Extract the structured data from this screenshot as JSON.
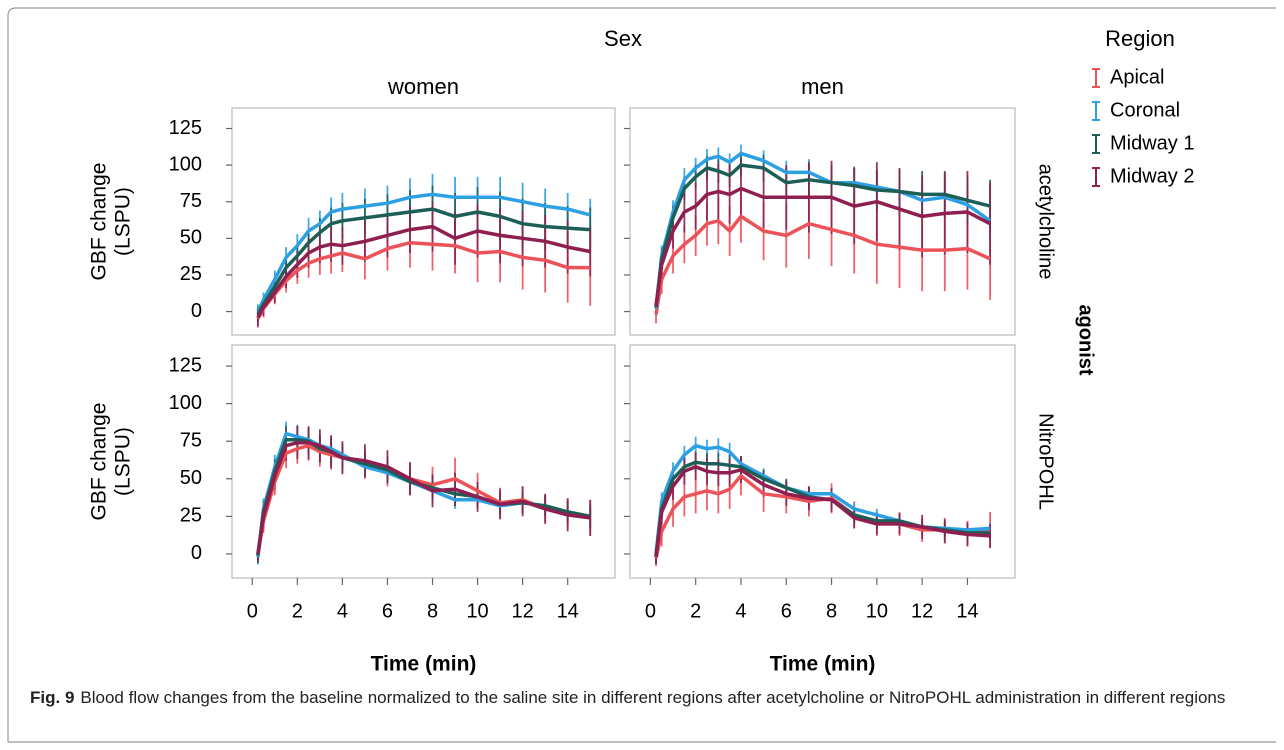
{
  "chart_data": {
    "type": "line",
    "column_facet_title": "Sex",
    "row_facet_title": "agonist",
    "legend_title": "Region",
    "columns": [
      "women",
      "men"
    ],
    "rows": [
      "acetylcholine",
      "NitroPOHL"
    ],
    "x_label": "Time (min)",
    "y_label": [
      "GBF change",
      "(LSPU)"
    ],
    "x": [
      0.25,
      0.5,
      1,
      1.5,
      2,
      2.5,
      3,
      3.5,
      4,
      5,
      6,
      7,
      8,
      9,
      10,
      11,
      12,
      13,
      14,
      15
    ],
    "xlim": [
      -0.9,
      16.1
    ],
    "xticks": [
      0,
      2,
      4,
      6,
      8,
      10,
      12,
      14
    ],
    "ylim": [
      -16,
      139
    ],
    "yticks": [
      0,
      25,
      50,
      75,
      100,
      125
    ],
    "grid": false,
    "series": [
      {
        "name": "Apical",
        "color": "#ec5258"
      },
      {
        "name": "Coronal",
        "color": "#2d9fe3"
      },
      {
        "name": "Midway 1",
        "color": "#1d5f57"
      },
      {
        "name": "Midway 2",
        "color": "#8f1f50"
      }
    ],
    "panels": [
      [
        {
          "values": [
            [
              -5,
              2,
              12,
              21,
              28,
              33,
              36,
              38,
              40,
              36,
              43,
              47,
              46,
              45,
              40,
              41,
              37,
              35,
              30,
              30
            ],
            [
              0,
              8,
              22,
              37,
              45,
              55,
              60,
              68,
              70,
              72,
              74,
              78,
              80,
              78,
              78,
              78,
              75,
              72,
              70,
              66
            ],
            [
              -2,
              5,
              17,
              30,
              38,
              47,
              54,
              60,
              62,
              64,
              66,
              68,
              70,
              65,
              68,
              65,
              60,
              58,
              57,
              56
            ],
            [
              -4,
              3,
              13,
              24,
              32,
              40,
              44,
              46,
              45,
              48,
              52,
              56,
              58,
              50,
              55,
              52,
              50,
              48,
              44,
              41
            ]
          ],
          "errors": [
            [
              6,
              6,
              7,
              8,
              9,
              10,
              11,
              12,
              13,
              14,
              15,
              17,
              18,
              19,
              20,
              21,
              22,
              22,
              24,
              26
            ],
            [
              5,
              5,
              6,
              7,
              8,
              9,
              9,
              10,
              11,
              12,
              12,
              13,
              14,
              14,
              14,
              14,
              13,
              12,
              11,
              11
            ],
            [
              5,
              5,
              6,
              7,
              8,
              9,
              10,
              11,
              12,
              13,
              14,
              15,
              16,
              16,
              17,
              17,
              17,
              16,
              15,
              15
            ],
            [
              6,
              6,
              7,
              8,
              9,
              10,
              11,
              12,
              13,
              14,
              15,
              16,
              17,
              18,
              18,
              19,
              19,
              18,
              18,
              17
            ]
          ]
        },
        {
          "values": [
            [
              -2,
              22,
              38,
              46,
              52,
              60,
              62,
              55,
              65,
              55,
              52,
              60,
              56,
              52,
              46,
              44,
              42,
              42,
              43,
              36
            ],
            [
              2,
              38,
              68,
              90,
              98,
              104,
              106,
              102,
              108,
              103,
              95,
              95,
              88,
              88,
              85,
              82,
              76,
              78,
              73,
              62
            ],
            [
              3,
              36,
              64,
              84,
              92,
              98,
              96,
              93,
              100,
              98,
              88,
              90,
              88,
              86,
              83,
              82,
              80,
              80,
              76,
              72
            ],
            [
              4,
              32,
              55,
              68,
              72,
              80,
              82,
              80,
              84,
              78,
              78,
              78,
              78,
              72,
              75,
              70,
              65,
              67,
              68,
              60
            ]
          ],
          "errors": [
            [
              6,
              10,
              12,
              13,
              14,
              15,
              16,
              17,
              18,
              20,
              22,
              24,
              25,
              26,
              27,
              28,
              28,
              28,
              28,
              28
            ],
            [
              5,
              7,
              8,
              8,
              7,
              7,
              6,
              6,
              6,
              7,
              8,
              9,
              9,
              10,
              10,
              11,
              12,
              12,
              13,
              14
            ],
            [
              5,
              7,
              8,
              8,
              8,
              8,
              8,
              8,
              8,
              9,
              10,
              11,
              12,
              13,
              14,
              15,
              16,
              16,
              17,
              18
            ],
            [
              5,
              9,
              12,
              14,
              16,
              18,
              19,
              20,
              20,
              21,
              22,
              24,
              25,
              26,
              27,
              28,
              28,
              28,
              28,
              28
            ]
          ]
        }
      ],
      [
        {
          "values": [
            [
              0,
              22,
              48,
              67,
              70,
              72,
              68,
              66,
              64,
              60,
              55,
              50,
              46,
              50,
              42,
              34,
              36,
              30,
              27,
              24
            ],
            [
              -2,
              30,
              58,
              80,
              78,
              76,
              72,
              70,
              66,
              58,
              54,
              48,
              42,
              36,
              36,
              32,
              34,
              32,
              27,
              25
            ],
            [
              -1,
              28,
              55,
              76,
              76,
              75,
              70,
              68,
              64,
              60,
              56,
              48,
              44,
              40,
              38,
              33,
              34,
              32,
              28,
              25
            ],
            [
              0,
              25,
              52,
              72,
              74,
              74,
              72,
              68,
              64,
              62,
              58,
              50,
              42,
              43,
              38,
              33,
              35,
              30,
              26,
              24
            ]
          ],
          "errors": [
            [
              5,
              8,
              9,
              10,
              10,
              10,
              10,
              10,
              10,
              10,
              10,
              11,
              12,
              14,
              12,
              10,
              9,
              9,
              10,
              12
            ],
            [
              5,
              7,
              8,
              8,
              8,
              8,
              8,
              8,
              7,
              7,
              7,
              7,
              7,
              6,
              6,
              6,
              6,
              6,
              6,
              6
            ],
            [
              5,
              7,
              8,
              9,
              9,
              9,
              9,
              9,
              8,
              8,
              8,
              8,
              8,
              8,
              7,
              7,
              7,
              7,
              7,
              8
            ],
            [
              5,
              8,
              9,
              10,
              11,
              11,
              11,
              11,
              11,
              11,
              11,
              11,
              11,
              11,
              10,
              10,
              10,
              10,
              11,
              12
            ]
          ]
        },
        {
          "values": [
            [
              -3,
              15,
              30,
              38,
              40,
              42,
              40,
              43,
              52,
              40,
              38,
              35,
              37,
              26,
              20,
              20,
              16,
              16,
              14,
              16
            ],
            [
              0,
              35,
              55,
              66,
              72,
              70,
              71,
              68,
              60,
              52,
              44,
              40,
              40,
              30,
              26,
              22,
              18,
              17,
              16,
              17
            ],
            [
              -1,
              30,
              50,
              58,
              61,
              60,
              60,
              59,
              58,
              50,
              44,
              38,
              36,
              26,
              22,
              22,
              18,
              16,
              14,
              14
            ],
            [
              -2,
              28,
              45,
              55,
              58,
              55,
              54,
              54,
              56,
              46,
              40,
              37,
              36,
              24,
              20,
              20,
              18,
              15,
              13,
              12
            ]
          ],
          "errors": [
            [
              5,
              10,
              12,
              13,
              13,
              13,
              13,
              13,
              13,
              12,
              11,
              10,
              10,
              9,
              8,
              8,
              8,
              8,
              8,
              12
            ],
            [
              5,
              6,
              6,
              6,
              6,
              6,
              6,
              6,
              5,
              5,
              5,
              4,
              4,
              4,
              4,
              4,
              4,
              4,
              4,
              4
            ],
            [
              5,
              7,
              7,
              7,
              7,
              7,
              7,
              7,
              7,
              6,
              6,
              6,
              6,
              5,
              5,
              5,
              5,
              5,
              5,
              5
            ],
            [
              5,
              8,
              9,
              9,
              9,
              9,
              9,
              9,
              9,
              8,
              8,
              8,
              8,
              7,
              7,
              7,
              8,
              8,
              8,
              8
            ]
          ]
        }
      ]
    ]
  },
  "caption": {
    "label": "Fig. 9",
    "text": "Blood flow changes from the baseline normalized to the saline site in different regions after acetylcholine or NitroPOHL administration in different regions"
  }
}
